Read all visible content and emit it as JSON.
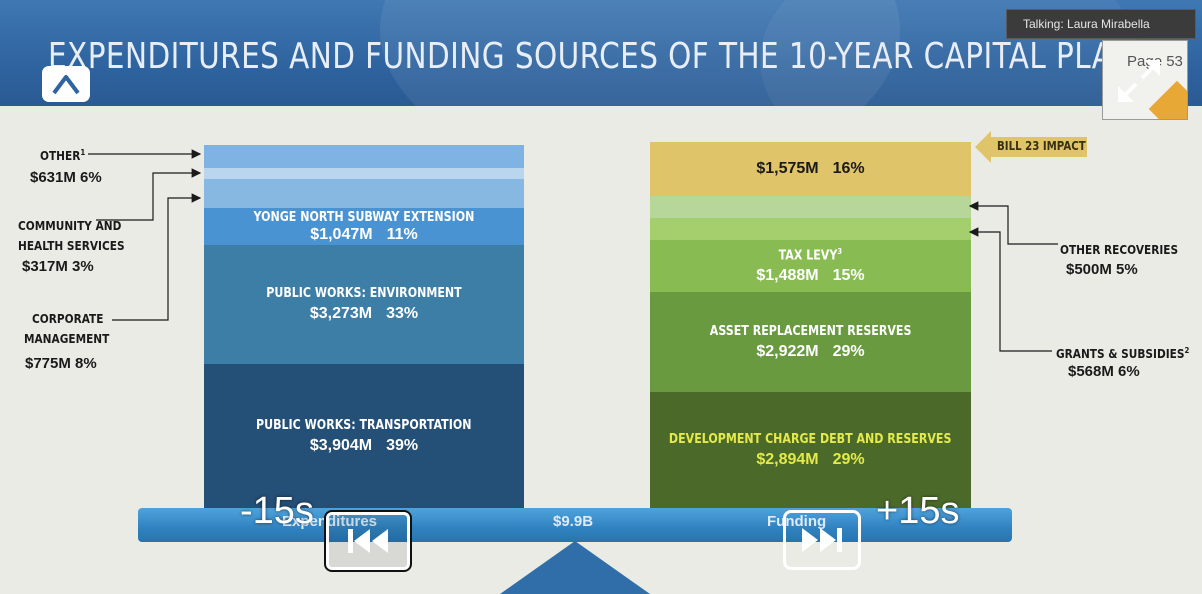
{
  "slide": {
    "title": "EXPENDITURES AND FUNDING SOURCES OF THE 10-YEAR CAPITAL PLAN"
  },
  "overlay": {
    "talking": "Talking: Laura Mirabella",
    "page_thumb_text": "Page 53",
    "skip_back_label": "-15s",
    "skip_forward_label": "+15s"
  },
  "expenditures": {
    "segments": [
      {
        "name": "PUBLIC WORKS: TRANSPORTATION",
        "amount": "$3,904M",
        "pct": "39%",
        "color": "#244f76"
      },
      {
        "name": "PUBLIC WORKS: ENVIRONMENT",
        "amount": "$3,273M",
        "pct": "33%",
        "color": "#3d7ea6"
      },
      {
        "name": "YONGE NORTH SUBWAY EXTENSION",
        "amount": "$1,047M",
        "pct": "11%",
        "color": "#4a93d2"
      },
      {
        "name": "CORPORATE MANAGEMENT",
        "amount": "$775M",
        "pct": "8%",
        "color": "#86b8e2"
      },
      {
        "name": "COMMUNITY AND HEALTH SERVICES",
        "amount": "$317M",
        "pct": "3%",
        "color": "#b9d6ee"
      },
      {
        "name": "OTHER",
        "amount": "$631M",
        "pct": "6%",
        "color": "#7fb3e3"
      }
    ],
    "labels": {
      "other_name": "OTHER",
      "other_sup": "1",
      "other_value": "$631M  6%",
      "community_line1": "COMMUNITY AND",
      "community_line2": "HEALTH SERVICES",
      "community_value": "$317M  3%",
      "corporate_line1": "CORPORATE",
      "corporate_line2": "MANAGEMENT",
      "corporate_value": "$775M  8%"
    }
  },
  "funding": {
    "segments": [
      {
        "name": "DEVELOPMENT CHARGE DEBT AND RESERVES",
        "amount": "$2,894M",
        "pct": "29%",
        "color": "#4b6a2a"
      },
      {
        "name": "ASSET REPLACEMENT RESERVES",
        "amount": "$2,922M",
        "pct": "29%",
        "color": "#6a9a40"
      },
      {
        "name": "TAX LEVY",
        "sup": "3",
        "amount": "$1,488M",
        "pct": "15%",
        "color": "#88bc52"
      },
      {
        "name": "GRANTS & SUBSIDIES",
        "amount": "$568M",
        "pct": "6%",
        "color": "#a5cf6d"
      },
      {
        "name": "OTHER RECOVERIES",
        "amount": "$500M",
        "pct": "5%",
        "color": "#b7d69a"
      },
      {
        "name": "BILL 23 IMPACT",
        "amount": "$1,575M",
        "pct": "16%",
        "color": "#e0c46a"
      }
    ],
    "labels": {
      "bill_tag": "BILL 23 IMPACT",
      "other_recoveries_name": "OTHER RECOVERIES",
      "other_recoveries_value": "$500M  5%",
      "grants_name": "GRANTS & SUBSIDIES",
      "grants_sup": "2",
      "grants_value": "$568M  6%"
    }
  },
  "beam": {
    "left_label": "Expenditures",
    "center_label": "$9.9B",
    "right_label": "Funding"
  }
}
